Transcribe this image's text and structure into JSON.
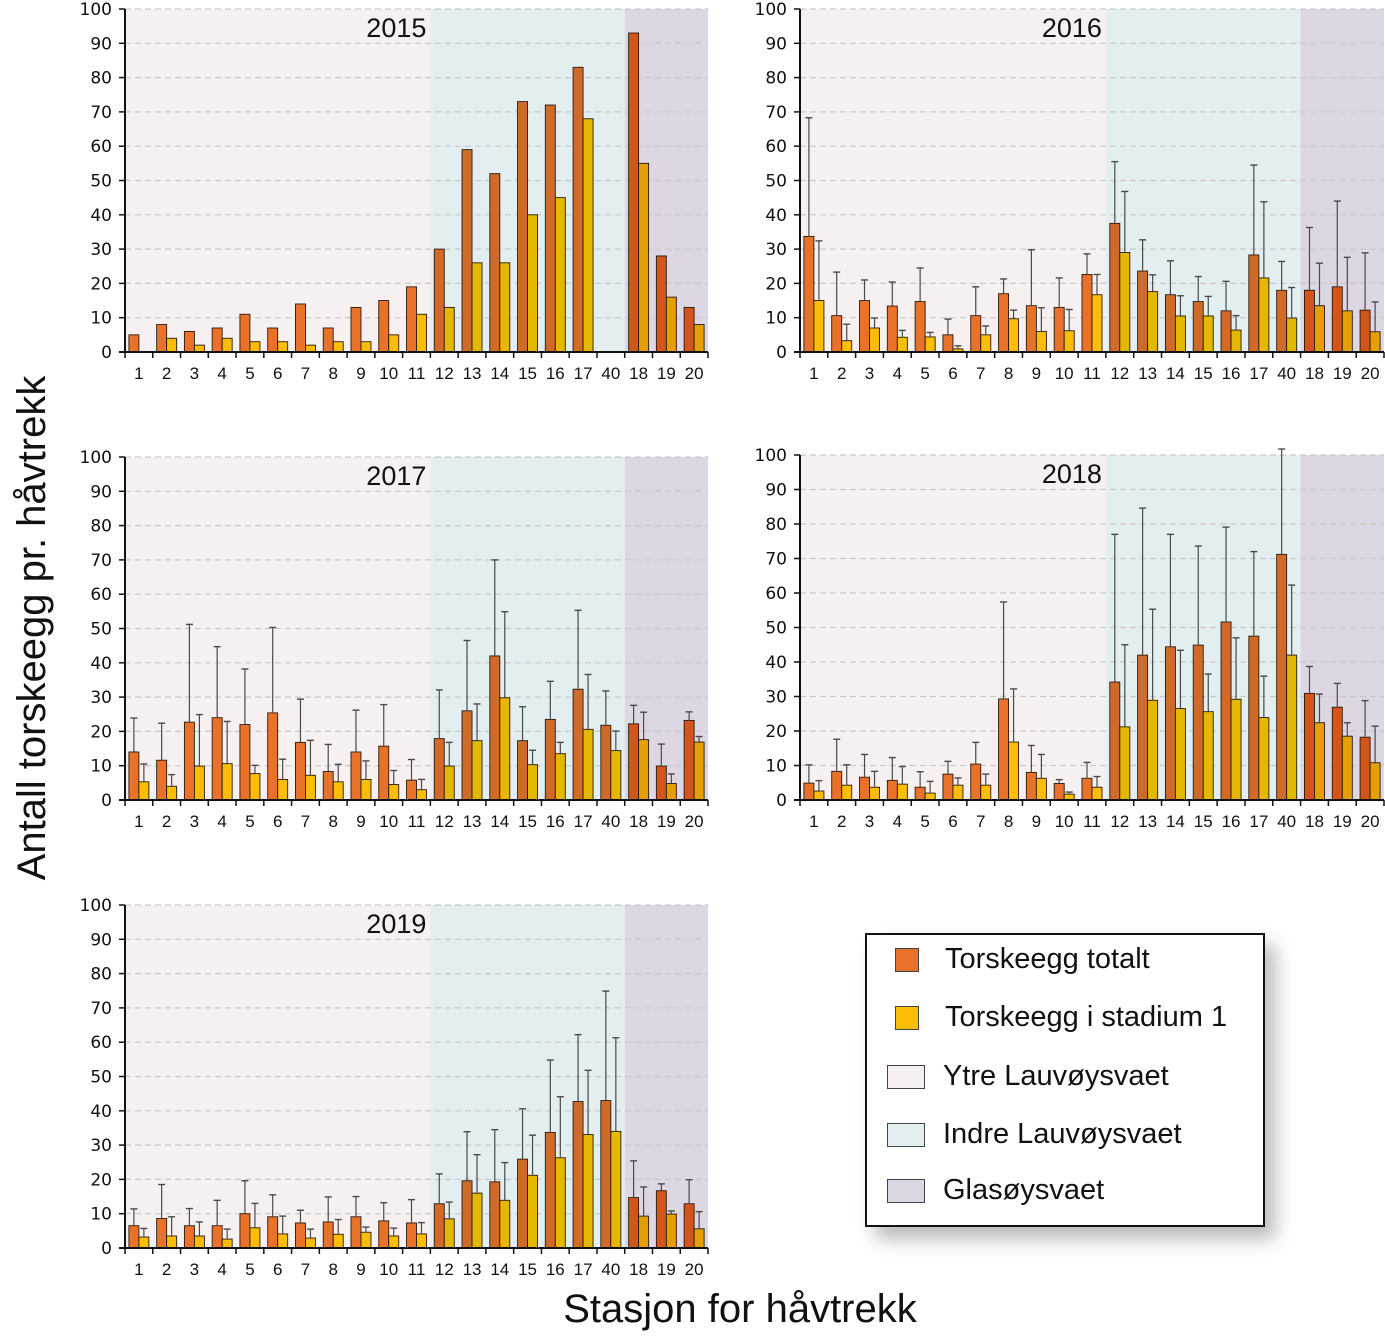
{
  "figure": {
    "y_axis_title": "Antall torskeegg pr. håvtrekk",
    "x_axis_title": "Stasjon for håvtrekk"
  },
  "legend": {
    "items": [
      {
        "label": "Torskeegg totalt",
        "color": "#e8722a",
        "kind": "bar"
      },
      {
        "label": "Torskeegg i stadium 1",
        "color": "#fbbd08",
        "kind": "bar"
      },
      {
        "label": "Ytre Lauvøysvaet",
        "color": "#f7f0f0",
        "kind": "zone"
      },
      {
        "label": "Indre Lauvøysvaet",
        "color": "#e2eef0",
        "kind": "zone"
      },
      {
        "label": "Glasøysvaet",
        "color": "#ddd6e3",
        "kind": "zone"
      }
    ]
  },
  "chart_data": [
    {
      "type": "bar",
      "title": "2015",
      "categories": [
        "1",
        "2",
        "3",
        "4",
        "5",
        "6",
        "7",
        "8",
        "9",
        "10",
        "11",
        "12",
        "13",
        "14",
        "15",
        "16",
        "17",
        "40",
        "18",
        "19",
        "20"
      ],
      "ylim": [
        0,
        100
      ],
      "yticks": [
        0,
        10,
        20,
        30,
        40,
        50,
        60,
        70,
        80,
        90,
        100
      ],
      "grid": true,
      "zones": [
        {
          "name": "Ytre Lauvøysvaet",
          "from": "1",
          "to": "11"
        },
        {
          "name": "Indre Lauvøysvaet",
          "from": "12",
          "to": "40"
        },
        {
          "name": "Glasøysvaet",
          "from": "18",
          "to": "20"
        }
      ],
      "series": [
        {
          "name": "Torskeegg totalt",
          "values": [
            5,
            8,
            6,
            7,
            11,
            7,
            14,
            7,
            13,
            15,
            19,
            30,
            59,
            52,
            73,
            72,
            83,
            0,
            93,
            28,
            13
          ],
          "error_upper": null
        },
        {
          "name": "Torskeegg i stadium 1",
          "values": [
            0,
            4,
            2,
            4,
            3,
            3,
            2,
            3,
            3,
            5,
            11,
            13,
            26,
            26,
            40,
            45,
            68,
            0,
            55,
            16,
            8
          ],
          "error_upper": null
        }
      ]
    },
    {
      "type": "bar",
      "title": "2016",
      "categories": [
        "1",
        "2",
        "3",
        "4",
        "5",
        "6",
        "7",
        "8",
        "9",
        "10",
        "11",
        "12",
        "13",
        "14",
        "15",
        "16",
        "17",
        "40",
        "18",
        "19",
        "20"
      ],
      "ylim": [
        0,
        100
      ],
      "yticks": [
        0,
        10,
        20,
        30,
        40,
        50,
        60,
        70,
        80,
        90,
        100
      ],
      "grid": true,
      "zones": [
        {
          "name": "Ytre Lauvøysvaet",
          "from": "1",
          "to": "11"
        },
        {
          "name": "Indre Lauvøysvaet",
          "from": "12",
          "to": "40"
        },
        {
          "name": "Glasøysvaet",
          "from": "18",
          "to": "20"
        }
      ],
      "series": [
        {
          "name": "Torskeegg totalt",
          "values": [
            33.7,
            10.6,
            15,
            13.4,
            14.7,
            5,
            10.6,
            17,
            13.5,
            13,
            22.6,
            37.5,
            23.6,
            16.7,
            14.7,
            12,
            28.3,
            18,
            18,
            19,
            12.2
          ],
          "error_upper": [
            68.3,
            23.3,
            21,
            20.4,
            24.5,
            9.6,
            19,
            21.3,
            29.8,
            21.6,
            28.6,
            55.5,
            32.7,
            26.6,
            22,
            20.6,
            54.5,
            26.4,
            36.3,
            44,
            28.9
          ]
        },
        {
          "name": "Torskeegg i stadium 1",
          "values": [
            15,
            3.3,
            7,
            4.3,
            4.4,
            0.9,
            5,
            9.7,
            6,
            6.2,
            16.7,
            29,
            17.6,
            10.5,
            10.5,
            6.4,
            21.6,
            9.9,
            13.5,
            12,
            5.9
          ],
          "error_upper": [
            32.4,
            8.1,
            9.9,
            6.3,
            5.7,
            1.8,
            7.6,
            12.2,
            12.9,
            12.4,
            22.6,
            46.8,
            22.5,
            16.4,
            16.2,
            10.6,
            43.8,
            18.8,
            25.9,
            27.6,
            14.6
          ]
        }
      ]
    },
    {
      "type": "bar",
      "title": "2017",
      "categories": [
        "1",
        "2",
        "3",
        "4",
        "5",
        "6",
        "7",
        "8",
        "9",
        "10",
        "11",
        "12",
        "13",
        "14",
        "15",
        "16",
        "17",
        "40",
        "18",
        "19",
        "20"
      ],
      "ylim": [
        0,
        100
      ],
      "yticks": [
        0,
        10,
        20,
        30,
        40,
        50,
        60,
        70,
        80,
        90,
        100
      ],
      "grid": true,
      "zones": [
        {
          "name": "Ytre Lauvøysvaet",
          "from": "1",
          "to": "11"
        },
        {
          "name": "Indre Lauvøysvaet",
          "from": "12",
          "to": "40"
        },
        {
          "name": "Glasøysvaet",
          "from": "18",
          "to": "20"
        }
      ],
      "series": [
        {
          "name": "Torskeegg totalt",
          "values": [
            14,
            11.6,
            22.7,
            24,
            22,
            25.4,
            16.8,
            8.3,
            14,
            15.7,
            5.8,
            17.9,
            26,
            42,
            17.3,
            23.5,
            32.3,
            21.8,
            22.2,
            9.9,
            23.2
          ],
          "error_upper": [
            23.9,
            22.4,
            51.2,
            44.7,
            38.2,
            50.3,
            29.4,
            16.2,
            26.2,
            27.8,
            11.8,
            32.1,
            46.5,
            70,
            27.2,
            34.6,
            55.3,
            31.8,
            27.6,
            16.3,
            25.7
          ]
        },
        {
          "name": "Torskeegg i stadium 1",
          "values": [
            5.3,
            4,
            9.9,
            10.6,
            7.7,
            6,
            7.2,
            5.3,
            6,
            4.5,
            3,
            9.9,
            17.3,
            29.8,
            10.3,
            13.5,
            20.6,
            14.4,
            17.6,
            4.8,
            16.9
          ],
          "error_upper": [
            10.5,
            7.4,
            24.9,
            22.9,
            10.1,
            11.9,
            17.4,
            10.4,
            11.4,
            8.6,
            6,
            16.8,
            28,
            54.9,
            14.5,
            16.8,
            36.6,
            20.1,
            25.6,
            7.6,
            18.5
          ]
        }
      ]
    },
    {
      "type": "bar",
      "title": "2018",
      "categories": [
        "1",
        "2",
        "3",
        "4",
        "5",
        "6",
        "7",
        "8",
        "9",
        "10",
        "11",
        "12",
        "13",
        "14",
        "15",
        "16",
        "17",
        "40",
        "18",
        "19",
        "20"
      ],
      "ylim": [
        0,
        100
      ],
      "yticks": [
        0,
        10,
        20,
        30,
        40,
        50,
        60,
        70,
        80,
        90,
        100
      ],
      "grid": true,
      "zones": [
        {
          "name": "Ytre Lauvøysvaet",
          "from": "1",
          "to": "11"
        },
        {
          "name": "Indre Lauvøysvaet",
          "from": "12",
          "to": "40"
        },
        {
          "name": "Glasøysvaet",
          "from": "18",
          "to": "20"
        }
      ],
      "series": [
        {
          "name": "Torskeegg totalt",
          "values": [
            4.9,
            8.3,
            6.6,
            5.7,
            3.7,
            7.5,
            10.4,
            29.3,
            8,
            4.8,
            6.3,
            34.2,
            42,
            44.4,
            44.9,
            51.6,
            47.5,
            71.2,
            30.9,
            26.9,
            18.2
          ],
          "error_upper": [
            10.2,
            17.6,
            13.2,
            12.3,
            8.2,
            11.2,
            16.7,
            57.4,
            15.8,
            5.9,
            10.9,
            77,
            84.6,
            77,
            73.6,
            79.1,
            72,
            101.8,
            38.7,
            33.8,
            28.8
          ]
        },
        {
          "name": "Torskeegg i stadium 1",
          "values": [
            2.6,
            4.3,
            3.7,
            4.6,
            2,
            4.3,
            4.3,
            16.8,
            6.3,
            1.7,
            3.7,
            21.2,
            28.9,
            26.5,
            25.6,
            29.2,
            23.9,
            42,
            22.4,
            18.5,
            10.8
          ],
          "error_upper": [
            5.6,
            10.2,
            8.3,
            9.7,
            5.4,
            6.4,
            7.5,
            32.2,
            13.2,
            2.3,
            6.8,
            45,
            55.3,
            43.4,
            36.5,
            47,
            35.9,
            62.3,
            30.7,
            22.4,
            21.4
          ]
        }
      ]
    },
    {
      "type": "bar",
      "title": "2019",
      "categories": [
        "1",
        "2",
        "3",
        "4",
        "5",
        "6",
        "7",
        "8",
        "9",
        "10",
        "11",
        "12",
        "13",
        "14",
        "15",
        "16",
        "17",
        "40",
        "18",
        "19",
        "20"
      ],
      "ylim": [
        0,
        100
      ],
      "yticks": [
        0,
        10,
        20,
        30,
        40,
        50,
        60,
        70,
        80,
        90,
        100
      ],
      "grid": true,
      "zones": [
        {
          "name": "Ytre Lauvøysvaet",
          "from": "1",
          "to": "11"
        },
        {
          "name": "Indre Lauvøysvaet",
          "from": "12",
          "to": "40"
        },
        {
          "name": "Glasøysvaet",
          "from": "18",
          "to": "20"
        }
      ],
      "series": [
        {
          "name": "Torskeegg totalt",
          "values": [
            6.5,
            8.6,
            6.5,
            6.5,
            10,
            9.1,
            7.3,
            7.6,
            9.1,
            7.9,
            7.3,
            12.9,
            19.6,
            19.3,
            25.9,
            33.7,
            42.7,
            43,
            14.7,
            16.7,
            12.9
          ],
          "error_upper": [
            11.4,
            18.5,
            11.5,
            13.9,
            19.6,
            15.5,
            11,
            14.9,
            15,
            13.2,
            14.1,
            21.6,
            33.9,
            34.5,
            40.6,
            54.8,
            62.2,
            74.9,
            25.4,
            18.7,
            19.9
          ]
        },
        {
          "name": "Torskeegg i stadium 1",
          "values": [
            3.2,
            3.5,
            3.5,
            2.6,
            5.9,
            4.1,
            2.9,
            4,
            4.6,
            3.5,
            4.1,
            8.5,
            16,
            13.9,
            21.2,
            26.3,
            33.1,
            34,
            9.3,
            9.9,
            5.6
          ],
          "error_upper": [
            5.7,
            9.1,
            7.6,
            5.5,
            13,
            9.3,
            5.5,
            8.3,
            6.1,
            5.8,
            7.4,
            13.4,
            27.2,
            24.9,
            32.9,
            44.1,
            51.8,
            61.3,
            17.8,
            10.8,
            10.6
          ]
        }
      ]
    }
  ]
}
